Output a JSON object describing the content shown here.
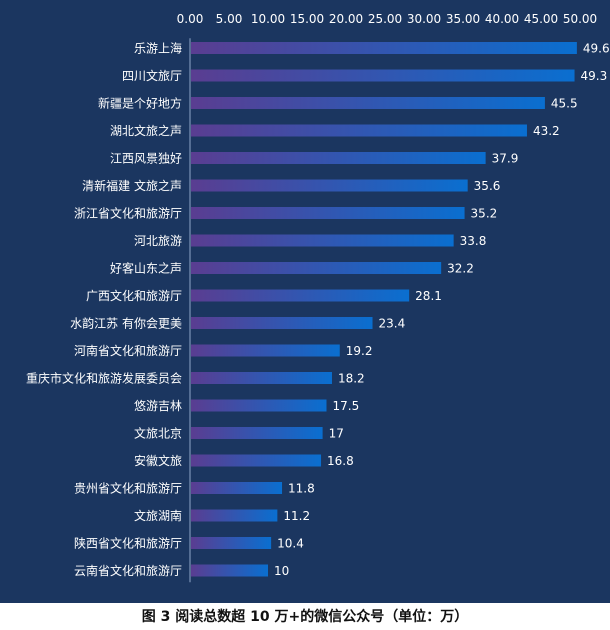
{
  "chart_data": {
    "type": "bar",
    "orientation": "horizontal",
    "categories": [
      "乐游上海",
      "四川文旅厅",
      "新疆是个好地方",
      "湖北文旅之声",
      "江西风景独好",
      "清新福建 文旅之声",
      "浙江省文化和旅游厅",
      "河北旅游",
      "好客山东之声",
      "广西文化和旅游厅",
      "水韵江苏 有你会更美",
      "河南省文化和旅游厅",
      "重庆市文化和旅游发展委员会",
      "悠游吉林",
      "文旅北京",
      "安徽文旅",
      "贵州省文化和旅游厅",
      "文旅湖南",
      "陕西省文化和旅游厅",
      "云南省文化和旅游厅"
    ],
    "values": [
      49.6,
      49.3,
      45.5,
      43.2,
      37.9,
      35.6,
      35.2,
      33.8,
      32.2,
      28.1,
      23.4,
      19.2,
      18.2,
      17.5,
      17,
      16.8,
      11.8,
      11.2,
      10.4,
      10
    ],
    "value_labels": [
      "49.6",
      "49.3",
      "45.5",
      "43.2",
      "37.9",
      "35.6",
      "35.2",
      "33.8",
      "32.2",
      "28.1",
      "23.4",
      "19.2",
      "18.2",
      "17.5",
      "17",
      "16.8",
      "11.8",
      "11.2",
      "10.4",
      "10"
    ],
    "xlim": [
      0,
      50
    ],
    "x_ticks": [
      "0.00",
      "5.00",
      "10.00",
      "15.00",
      "20.00",
      "25.00",
      "30.00",
      "35.00",
      "40.00",
      "45.00",
      "50.00"
    ],
    "x_axis_position": "top",
    "grid": false,
    "title": "",
    "xlabel": "",
    "ylabel": ""
  },
  "colors": {
    "background": "#1b3660",
    "bar_start": "#5a3d91",
    "bar_end": "#0a6fd0",
    "text": "#ffffff"
  },
  "caption": "图 3 阅读总数超 10 万+的微信公众号（单位：万）"
}
